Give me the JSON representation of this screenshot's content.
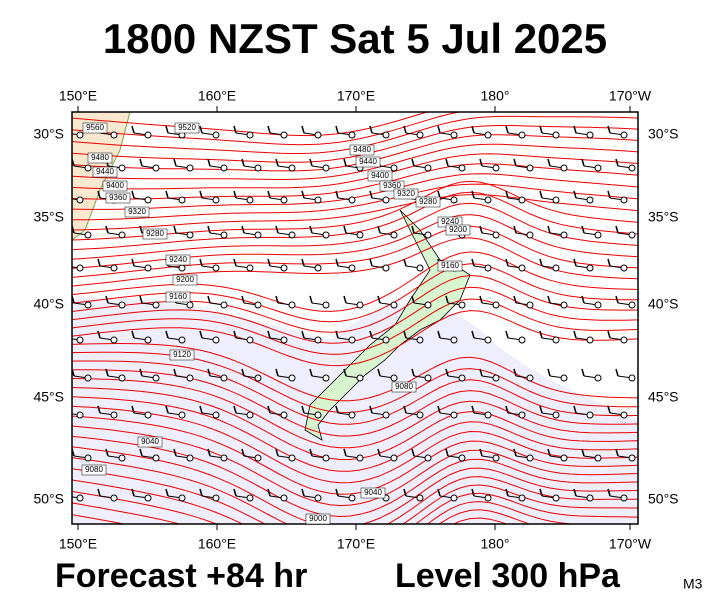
{
  "header": {
    "title": "1800 NZST Sat 5 Jul 2025"
  },
  "map": {
    "lon_labels": [
      "150°E",
      "160°E",
      "170°E",
      "180°",
      "170°W"
    ],
    "lat_labels": [
      "30°S",
      "35°S",
      "40°S",
      "45°S",
      "50°S"
    ],
    "contour_labels": [
      "9560",
      "9520",
      "9480",
      "9440",
      "9400",
      "9360",
      "9320",
      "9280",
      "9480",
      "9440",
      "9400",
      "9360",
      "9320",
      "9280",
      "9240",
      "9200",
      "9160",
      "9240",
      "9200",
      "9160",
      "9120",
      "9080",
      "9040",
      "9080",
      "9040",
      "9000"
    ]
  },
  "footer": {
    "forecast": "Forecast +84 hr",
    "level": "Level 300 hPa",
    "code": "M3"
  }
}
